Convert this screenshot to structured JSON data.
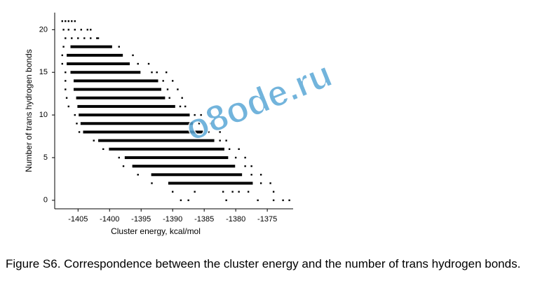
{
  "chart_data": {
    "type": "scatter",
    "xlabel": "Cluster energy, kcal/mol",
    "ylabel": "Number of trans hydrogen bonds",
    "caption": "Figure S6. Correspondence between the cluster energy and the number of trans hydrogen bonds.",
    "watermark": "o8ode.ru",
    "xlim": [
      -1408.7,
      -1370.9
    ],
    "ylim": [
      -1,
      22
    ],
    "xticks": [
      -1405,
      -1400,
      -1395,
      -1390,
      -1385,
      -1380,
      -1375
    ],
    "yticks": [
      0,
      5,
      10,
      15,
      20
    ],
    "color": "#000000",
    "segments": [
      {
        "y": 18,
        "x": [
          -1406.2,
          -1399.6
        ]
      },
      {
        "y": 17,
        "x": [
          -1406.8,
          -1397.9
        ]
      },
      {
        "y": 16,
        "x": [
          -1406.8,
          -1396.8
        ]
      },
      {
        "y": 15,
        "x": [
          -1406.2,
          -1395.1
        ]
      },
      {
        "y": 14,
        "x": [
          -1405.7,
          -1392.3
        ]
      },
      {
        "y": 13,
        "x": [
          -1405.7,
          -1391.8
        ]
      },
      {
        "y": 12,
        "x": [
          -1405.3,
          -1391.2
        ]
      },
      {
        "y": 11,
        "x": [
          -1405.1,
          -1389.6
        ]
      },
      {
        "y": 10,
        "x": [
          -1404.9,
          -1387.3
        ]
      },
      {
        "y": 9,
        "x": [
          -1404.6,
          -1386.8
        ]
      },
      {
        "y": 8,
        "x": [
          -1404.2,
          -1385.1
        ]
      },
      {
        "y": 7,
        "x": [
          -1401.8,
          -1383.4
        ]
      },
      {
        "y": 6,
        "x": [
          -1400.1,
          -1381.8
        ]
      },
      {
        "y": 5,
        "x": [
          -1397.6,
          -1381.2
        ]
      },
      {
        "y": 4,
        "x": [
          -1396.4,
          -1380.1
        ]
      },
      {
        "y": 3,
        "x": [
          -1393.4,
          -1379.0
        ]
      },
      {
        "y": 2,
        "x": [
          -1390.7,
          -1377.3
        ]
      }
    ],
    "series": [
      {
        "color": "#000000",
        "x": [
          -1407.5,
          -1407,
          -1406.5,
          -1406,
          -1405.5,
          -1407.3,
          -1406.5,
          -1405.5,
          -1404.5,
          -1403.5,
          -1403,
          -1407,
          -1406,
          -1405,
          -1404,
          -1403,
          -1402,
          -1401.8,
          -1407.3,
          -1398.5,
          -1407.5,
          -1396.3,
          -1407.5,
          -1395.5,
          -1393.8,
          -1407,
          -1393.3,
          -1392.5,
          -1391,
          -1407,
          -1391.5,
          -1390,
          -1407,
          -1390.8,
          -1389.2,
          -1406.8,
          -1390.5,
          -1388.5,
          -1406.5,
          -1388.8,
          -1388,
          -1405.5,
          -1386.5,
          -1385.5,
          -1405.2,
          -1385.8,
          -1384,
          -1404.8,
          -1384.3,
          -1382.5,
          -1402.5,
          -1382.5,
          -1381.5,
          -1401,
          -1381,
          -1379.5,
          -1398.5,
          -1380,
          -1378.5,
          -1397.8,
          -1378.5,
          -1377.5,
          -1395.5,
          -1377.5,
          -1376,
          -1393.3,
          -1376,
          -1374.5,
          -1390,
          -1386.5,
          -1382,
          -1380.5,
          -1379.5,
          -1378,
          -1374,
          -1388.7,
          -1387.5,
          -1381.5,
          -1376.5,
          -1374,
          -1372.5,
          -1371.5
        ],
        "y": [
          21,
          21,
          21,
          21,
          21,
          20,
          20,
          20,
          20,
          20,
          20,
          19,
          19,
          19,
          19,
          19,
          19,
          19,
          18,
          18,
          17,
          17,
          16,
          16,
          16,
          15,
          15,
          15,
          15,
          14,
          14,
          14,
          13,
          13,
          13,
          12,
          12,
          12,
          11,
          11,
          11,
          10,
          10,
          10,
          9,
          9,
          9,
          8,
          8,
          8,
          7,
          7,
          7,
          6,
          6,
          6,
          5,
          5,
          5,
          4,
          4,
          4,
          3,
          3,
          3,
          2,
          2,
          2,
          1,
          1,
          1,
          1,
          1,
          1,
          1,
          0,
          0,
          0,
          0,
          0,
          0,
          0
        ]
      }
    ]
  }
}
